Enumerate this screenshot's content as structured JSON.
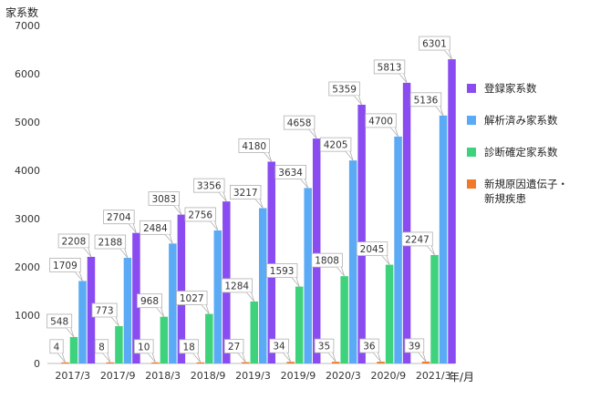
{
  "chart_data": {
    "type": "bar",
    "ylabel": "家系数",
    "xlabel": "年/月",
    "ylim": [
      0,
      7000
    ],
    "yticks": [
      0,
      1000,
      2000,
      3000,
      4000,
      5000,
      6000,
      7000
    ],
    "grid": false,
    "legend_position": "right",
    "categories": [
      "2017/3",
      "2017/9",
      "2018/3",
      "2018/9",
      "2019/3",
      "2019/9",
      "2020/3",
      "2020/9",
      "2021/3"
    ],
    "series": [
      {
        "name": "新規原因遺伝子・\n新規疾患",
        "color": "#f07a2a",
        "values": [
          4,
          8,
          10,
          18,
          27,
          34,
          35,
          36,
          39
        ]
      },
      {
        "name": "診断確定家系数",
        "color": "#3fd27c",
        "values": [
          548,
          773,
          968,
          1027,
          1284,
          1593,
          1808,
          2045,
          2247
        ]
      },
      {
        "name": "解析済み家系数",
        "color": "#5aaaf5",
        "values": [
          1709,
          2188,
          2484,
          2756,
          3217,
          3634,
          4205,
          4700,
          5136
        ]
      },
      {
        "name": "登録家系数",
        "color": "#8a4cf0",
        "values": [
          2208,
          2704,
          3083,
          3356,
          4180,
          4658,
          5359,
          5813,
          6301
        ]
      }
    ],
    "legend_order": [
      3,
      2,
      1,
      0
    ]
  }
}
